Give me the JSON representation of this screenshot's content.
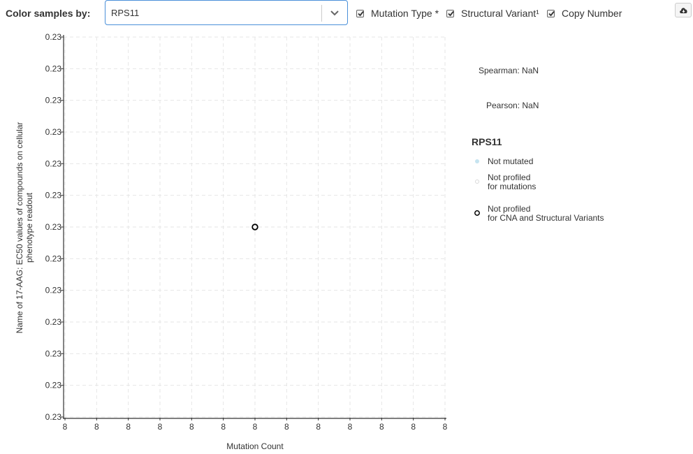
{
  "toolbar": {
    "color_label": "Color samples by:",
    "gene_value": "RPS11",
    "checkboxes": [
      {
        "label": "Mutation Type *",
        "checked": true
      },
      {
        "label": "Structural Variant¹",
        "checked": true
      },
      {
        "label": "Copy Number",
        "checked": true
      }
    ],
    "download_icon": "cloud-download-icon"
  },
  "stats": {
    "spearman": "Spearman: NaN",
    "pearson": "Pearson: NaN"
  },
  "legend": {
    "title": "RPS11",
    "items": [
      {
        "line1": "Not mutated",
        "line2": "",
        "fill": "#c6e4f0",
        "stroke": "#c6e4f0"
      },
      {
        "line1": "Not profiled",
        "line2": "for mutations",
        "fill": "#ffffff",
        "stroke": "#d9d9d9"
      },
      {
        "line1": "Not profiled",
        "line2": "for CNA and Structural Variants",
        "fill": "#ffffff",
        "stroke": "#000000"
      }
    ]
  },
  "chart_data": {
    "type": "scatter",
    "xlabel": "Mutation Count",
    "ylabel_lines": [
      "Name of 17-AAG: EC50 values of compounds on cellular",
      "phenotype readout"
    ],
    "x_tick_labels": [
      "8",
      "8",
      "8",
      "8",
      "8",
      "8",
      "8",
      "8",
      "8",
      "8",
      "8",
      "8",
      "8"
    ],
    "y_tick_labels": [
      "0.23",
      "0.23",
      "0.23",
      "0.23",
      "0.23",
      "0.23",
      "0.23",
      "0.23",
      "0.23",
      "0.23",
      "0.23",
      "0.23",
      "0.23"
    ],
    "grid": true,
    "points": [
      {
        "x": 8,
        "y": 0.23,
        "fill": "#ffffff",
        "stroke": "#000000"
      }
    ]
  }
}
